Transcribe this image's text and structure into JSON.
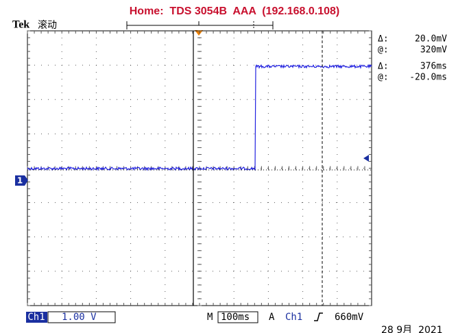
{
  "header": {
    "title": "Home:  TDS 3054B  AAA  (192.168.0.108)"
  },
  "brand": "Tek",
  "mode": "滚动",
  "readouts": [
    {
      "label": "Δ:",
      "value": "20.0mV"
    },
    {
      "label": "@:",
      "value": "320mV"
    },
    {
      "label": "Δ:",
      "value": "376ms"
    },
    {
      "label": "@:",
      "value": "-20.0ms"
    }
  ],
  "channel_marker": "1",
  "status_bar": {
    "channel": "Ch1",
    "volts_per_div": "1.00 V",
    "timebase_label": "M",
    "timebase": "100ms",
    "trigger_label": "A",
    "trigger_source": "Ch1",
    "trigger_level": "660mV"
  },
  "date": "28 9月  2021"
}
